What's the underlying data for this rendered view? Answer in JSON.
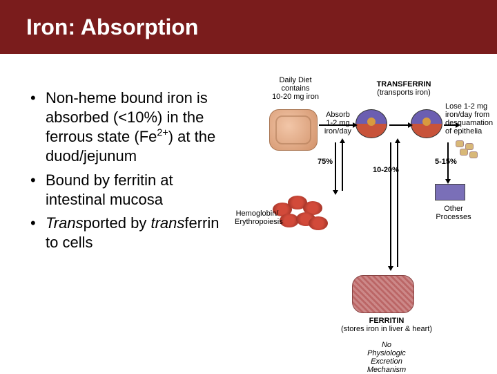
{
  "title": "Iron: Absorption",
  "bullets": {
    "b1_pre": "Non-heme bound iron is absorbed (<10%) in the ferrous state (Fe",
    "b1_sup": "2+",
    "b1_post": ") at the duod/jejunum",
    "b2": "Bound by ferritin at intestinal mucosa",
    "b3_italic": "Trans",
    "b3_plain_mid": "ported by ",
    "b3_italic2": "trans",
    "b3_plain_end": "ferrin to cells"
  },
  "diagram": {
    "daily_diet": "Daily Diet\ncontains\n10-20 mg iron",
    "transferrin": "TRANSFERRIN\n(transports iron)",
    "absorb": "Absorb\n1-2 mg\niron/day",
    "lose": "Lose 1-2 mg\niron/day from\ndesquamation\nof epithelia",
    "p75": "75%",
    "p10_20": "10-20%",
    "p5_15": "5-15%",
    "hemo": "Hemoglobin/\nErythropoiesis",
    "ferritin": "FERRITIN\n(stores iron in liver & heart)",
    "other": "Other\nProcesses",
    "no_exc": "No\nPhysiologic\nExcretion\nMechanism"
  },
  "colors": {
    "title_bg": "#7a1c1c",
    "title_text": "#ffffff",
    "body_bg": "#ffffff",
    "cell_top": "#6b5eb1",
    "cell_bottom": "#c8533a",
    "rbc": "#b83a2e"
  }
}
